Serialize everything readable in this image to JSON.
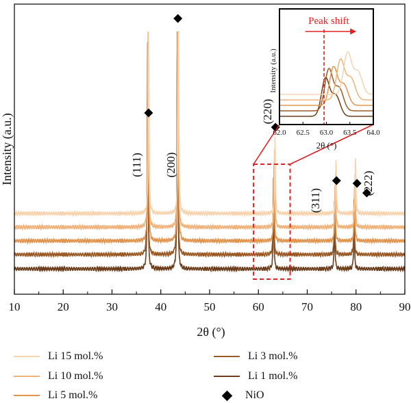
{
  "chart_data": {
    "type": "line",
    "xlabel": "2θ (°)",
    "ylabel": "Intensity (a.u.)",
    "xlim": [
      10,
      90
    ],
    "xticks": [
      10,
      20,
      30,
      40,
      50,
      60,
      70,
      80,
      90
    ],
    "series": [
      {
        "name": "Li 1 mol.%",
        "color": "#6b3d1b",
        "peaks": [
          {
            "x": 37.3,
            "h": 0.27
          },
          {
            "x": 43.4,
            "h": 0.32
          },
          {
            "x": 63.1,
            "h": 0.1
          },
          {
            "x": 75.6,
            "h": 0.07
          },
          {
            "x": 79.6,
            "h": 0.07
          }
        ]
      },
      {
        "name": "Li 3 mol.%",
        "color": "#9a5a25",
        "peaks": [
          {
            "x": 37.3,
            "h": 0.27
          },
          {
            "x": 43.4,
            "h": 0.32
          },
          {
            "x": 63.1,
            "h": 0.1
          },
          {
            "x": 75.6,
            "h": 0.07
          },
          {
            "x": 79.6,
            "h": 0.07
          }
        ]
      },
      {
        "name": "Li 5 mol.%",
        "color": "#e0954f",
        "peaks": [
          {
            "x": 37.4,
            "h": 0.27
          },
          {
            "x": 43.5,
            "h": 0.32
          },
          {
            "x": 63.2,
            "h": 0.1
          },
          {
            "x": 75.7,
            "h": 0.07
          },
          {
            "x": 79.7,
            "h": 0.07
          }
        ]
      },
      {
        "name": "Li 10 mol.%",
        "color": "#efb27a",
        "peaks": [
          {
            "x": 37.4,
            "h": 0.27
          },
          {
            "x": 43.5,
            "h": 0.32
          },
          {
            "x": 63.3,
            "h": 0.1
          },
          {
            "x": 75.8,
            "h": 0.07
          },
          {
            "x": 79.8,
            "h": 0.07
          }
        ]
      },
      {
        "name": "Li 15 mol.%",
        "color": "#f6d3ae",
        "peaks": [
          {
            "x": 37.5,
            "h": 0.27
          },
          {
            "x": 43.6,
            "h": 0.32
          },
          {
            "x": 63.4,
            "h": 0.1
          },
          {
            "x": 75.9,
            "h": 0.07
          },
          {
            "x": 79.9,
            "h": 0.07
          }
        ]
      }
    ],
    "markers": {
      "name": "NiO",
      "x": [
        37.5,
        43.5,
        63.5,
        76.0,
        80.2,
        82.2
      ]
    },
    "peak_labels": [
      {
        "text": "(111)",
        "x": 37.3
      },
      {
        "text": "(200)",
        "x": 43.4
      },
      {
        "text": "(220)",
        "x": 63.1
      },
      {
        "text": "(311)",
        "x": 75.6
      },
      {
        "text": "(222)",
        "x": 79.6
      }
    ],
    "inset": {
      "title": "Peak shift",
      "xlabel": "2θ (°)",
      "ylabel": "Intensity (a.u.)",
      "xlim": [
        62.0,
        64.0
      ],
      "xticks": [
        "62.0",
        "62.5",
        "63.0",
        "63.5",
        "64.0"
      ],
      "reference_x": 62.95,
      "peaks": [
        {
          "series": "Li 1 mol.%",
          "center": 62.98
        },
        {
          "series": "Li 3 mol.%",
          "center": 63.05
        },
        {
          "series": "Li 5 mol.%",
          "center": 63.15
        },
        {
          "series": "Li 10 mol.%",
          "center": 63.3
        },
        {
          "series": "Li 15 mol.%",
          "center": 63.45
        }
      ]
    },
    "highlight_region": {
      "x": [
        59,
        66.5
      ]
    },
    "legend_position": "bottom",
    "grid": false
  }
}
